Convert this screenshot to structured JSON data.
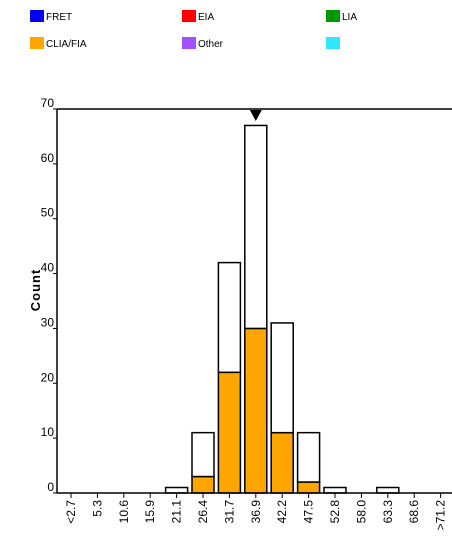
{
  "legend": [
    {
      "label": "FRET",
      "color": "#0000ff"
    },
    {
      "label": "EIA",
      "color": "#ff0000"
    },
    {
      "label": "LIA",
      "color": "#009900"
    },
    {
      "label": "CLIA/FIA",
      "color": "#ffa500"
    },
    {
      "label": "Other",
      "color": "#a64dff"
    },
    {
      "label": "",
      "color": "#33e6ff"
    }
  ],
  "chart_data": {
    "type": "bar",
    "stacked": true,
    "ylabel": "Count",
    "xlabel": "",
    "ylim": [
      0,
      70
    ],
    "yticks": [
      0,
      10,
      20,
      30,
      40,
      50,
      60,
      70
    ],
    "categories": [
      "<2.7",
      "5.3",
      "10.6",
      "15.9",
      "21.1",
      "26.4",
      "31.7",
      "36.9",
      "42.2",
      "47.5",
      "52.8",
      "58.0",
      "63.3",
      "68.6",
      ">71.2"
    ],
    "series": [
      {
        "name": "CLIA/FIA",
        "color": "#ffa500",
        "values": [
          0,
          0,
          0,
          0,
          0,
          3,
          22,
          30,
          11,
          2,
          0,
          0,
          0,
          0,
          0
        ]
      },
      {
        "color": "#ffffff",
        "values": [
          0,
          0,
          0,
          0,
          1,
          8,
          20,
          37,
          20,
          9,
          1,
          0,
          1,
          0,
          0
        ]
      }
    ],
    "marker": {
      "category": "36.9",
      "symbol": "down-triangle"
    },
    "grid": false
  }
}
